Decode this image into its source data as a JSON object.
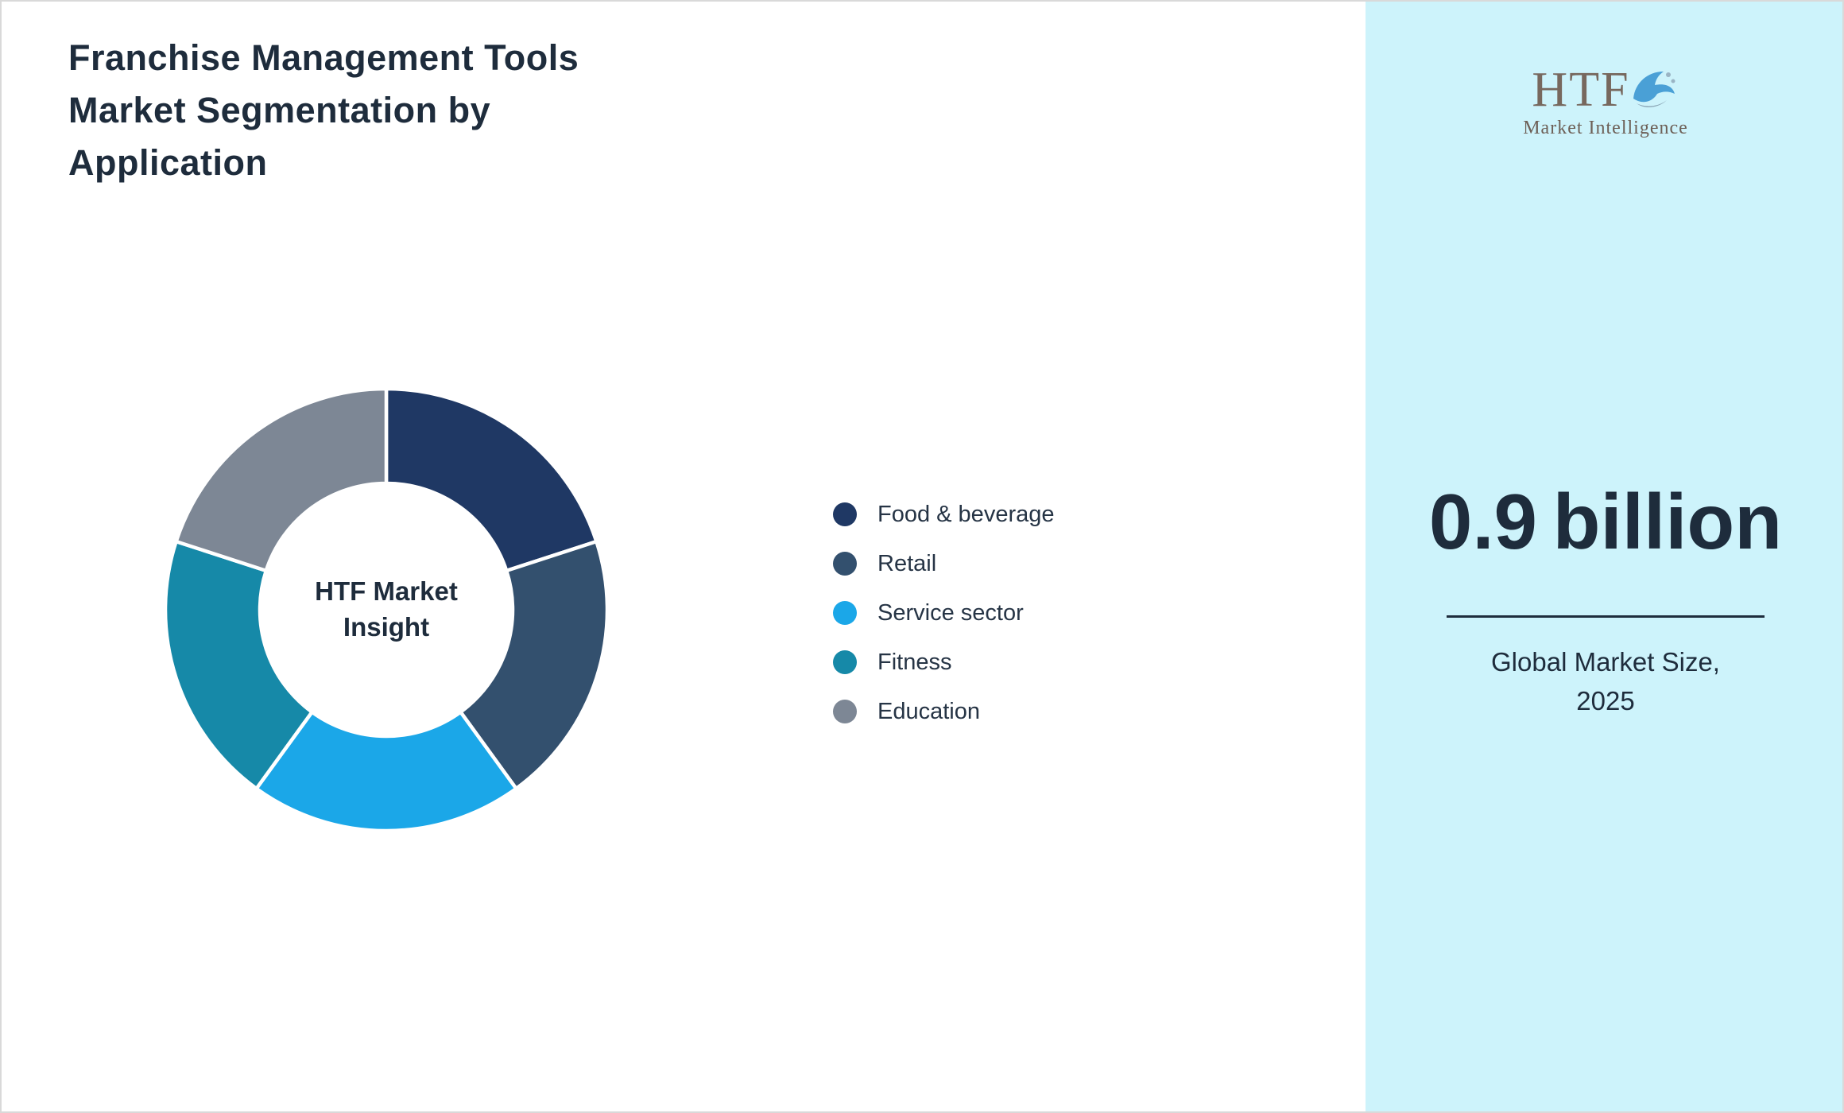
{
  "page": {
    "title_lines": [
      "Franchise Management Tools",
      "Market Segmentation by",
      "Application"
    ],
    "background": "#ffffff",
    "border_color": "#d9d9d9"
  },
  "chart_data": {
    "type": "pie",
    "donut": true,
    "title": "Franchise Management Tools Market Segmentation by Application",
    "center_label_lines": [
      "HTF Market",
      "Insight"
    ],
    "categories": [
      "Food & beverage",
      "Retail",
      "Service sector",
      "Fitness",
      "Education"
    ],
    "values": [
      20,
      20,
      20,
      20,
      20
    ],
    "unit": "percent-share (equal segments, unlabeled)",
    "colors": [
      "#1f3864",
      "#33506e",
      "#1ba7e8",
      "#1689a8",
      "#7d8795"
    ],
    "legend_position": "right",
    "start_angle_deg": 0,
    "slice_gap_color": "#ffffff"
  },
  "sidebar": {
    "background": "#cdf3fb",
    "logo_text": "HTF",
    "logo_subtext": "Market Intelligence",
    "market_size_value": "0.9",
    "market_size_unit": "billion",
    "caption_lines": [
      "Global Market Size,",
      "2025"
    ],
    "accent_text_color": "#1e2c3c"
  }
}
